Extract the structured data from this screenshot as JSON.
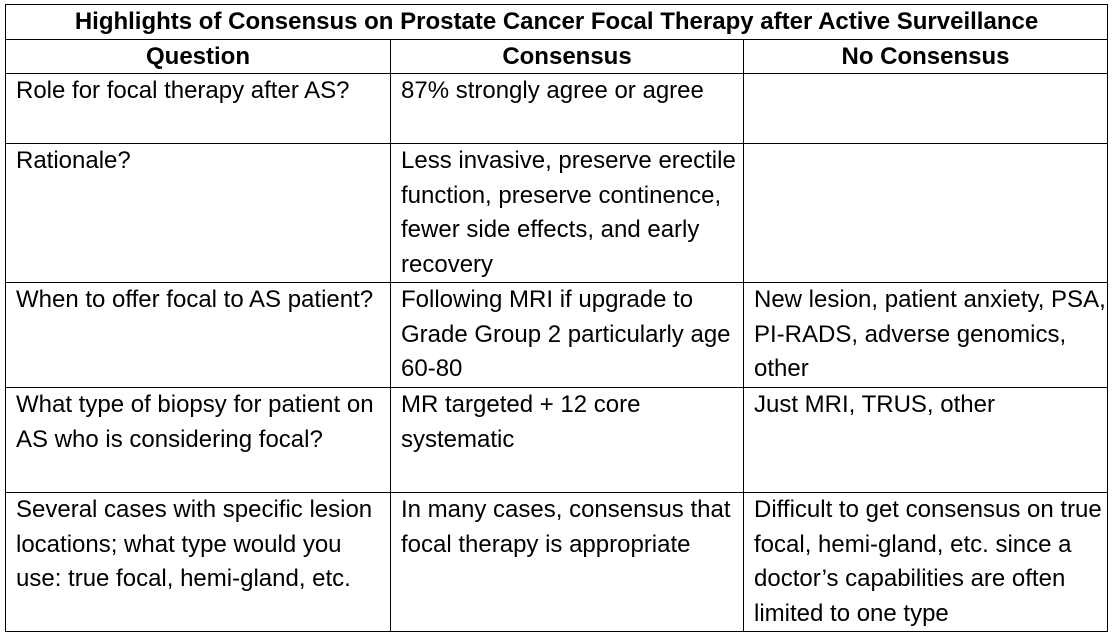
{
  "table": {
    "title": "Highlights of Consensus on Prostate Cancer Focal Therapy after Active Surveillance",
    "headers": {
      "question": "Question",
      "consensus": "Consensus",
      "no_consensus": "No Consensus"
    },
    "rows": [
      {
        "question": "Role for focal therapy after AS?",
        "consensus": "87% strongly agree or agree",
        "no_consensus": ""
      },
      {
        "question": "Rationale?",
        "consensus": "Less invasive, preserve erectile function, preserve continence, fewer side effects, and early recovery",
        "no_consensus": ""
      },
      {
        "question": "When to offer focal to AS patient?",
        "consensus": "Following MRI if upgrade to Grade Group 2 particularly age 60-80",
        "no_consensus": "New lesion, patient anxiety, PSA, PI-RADS, adverse genomics, other"
      },
      {
        "question": "What type of biopsy for patient on AS who is considering focal?",
        "consensus": "MR targeted + 12 core systematic",
        "no_consensus": "Just MRI, TRUS, other"
      },
      {
        "question": "Several cases with specific lesion locations; what type would you use: true focal, hemi-gland, etc.",
        "consensus": "In many cases, consensus that focal therapy is appropriate",
        "no_consensus": "Difficult to get consensus on true focal, hemi-gland, etc. since a doctor’s capabilities are often limited to one type"
      }
    ]
  }
}
